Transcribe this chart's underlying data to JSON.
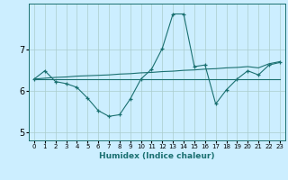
{
  "title": "",
  "xlabel": "Humidex (Indice chaleur)",
  "bg_color": "#cceeff",
  "line_color": "#1a7070",
  "grid_color": "#aacccc",
  "xlim": [
    -0.5,
    23.5
  ],
  "ylim": [
    4.8,
    8.1
  ],
  "yticks": [
    5,
    6,
    7
  ],
  "xticks": [
    0,
    1,
    2,
    3,
    4,
    5,
    6,
    7,
    8,
    9,
    10,
    11,
    12,
    13,
    14,
    15,
    16,
    17,
    18,
    19,
    20,
    21,
    22,
    23
  ],
  "line1_x": [
    0,
    1,
    2,
    3,
    4,
    5,
    6,
    7,
    8,
    9,
    10,
    11,
    12,
    13,
    14,
    15,
    16,
    17,
    18,
    19,
    20,
    21,
    22,
    23
  ],
  "line1_y": [
    6.28,
    6.48,
    6.22,
    6.17,
    6.08,
    5.82,
    5.52,
    5.38,
    5.42,
    5.8,
    6.28,
    6.52,
    7.02,
    7.85,
    7.85,
    6.58,
    6.62,
    5.68,
    6.02,
    6.28,
    6.48,
    6.38,
    6.62,
    6.68
  ],
  "line2_x": [
    0,
    1,
    2,
    3,
    4,
    5,
    6,
    7,
    8,
    9,
    10,
    11,
    12,
    13,
    14,
    15,
    16,
    17,
    18,
    19,
    20,
    21,
    22,
    23
  ],
  "line2_y": [
    6.28,
    6.28,
    6.28,
    6.28,
    6.28,
    6.28,
    6.28,
    6.28,
    6.28,
    6.28,
    6.28,
    6.28,
    6.28,
    6.28,
    6.28,
    6.28,
    6.28,
    6.28,
    6.28,
    6.28,
    6.28,
    6.28,
    6.28,
    6.28
  ],
  "line3_x": [
    0,
    1,
    2,
    3,
    4,
    5,
    6,
    7,
    8,
    9,
    10,
    11,
    12,
    13,
    14,
    15,
    16,
    17,
    18,
    19,
    20,
    21,
    22,
    23
  ],
  "line3_y": [
    6.28,
    6.3,
    6.32,
    6.33,
    6.35,
    6.36,
    6.37,
    6.38,
    6.4,
    6.41,
    6.43,
    6.44,
    6.46,
    6.47,
    6.49,
    6.5,
    6.52,
    6.53,
    6.55,
    6.56,
    6.58,
    6.55,
    6.65,
    6.7
  ]
}
